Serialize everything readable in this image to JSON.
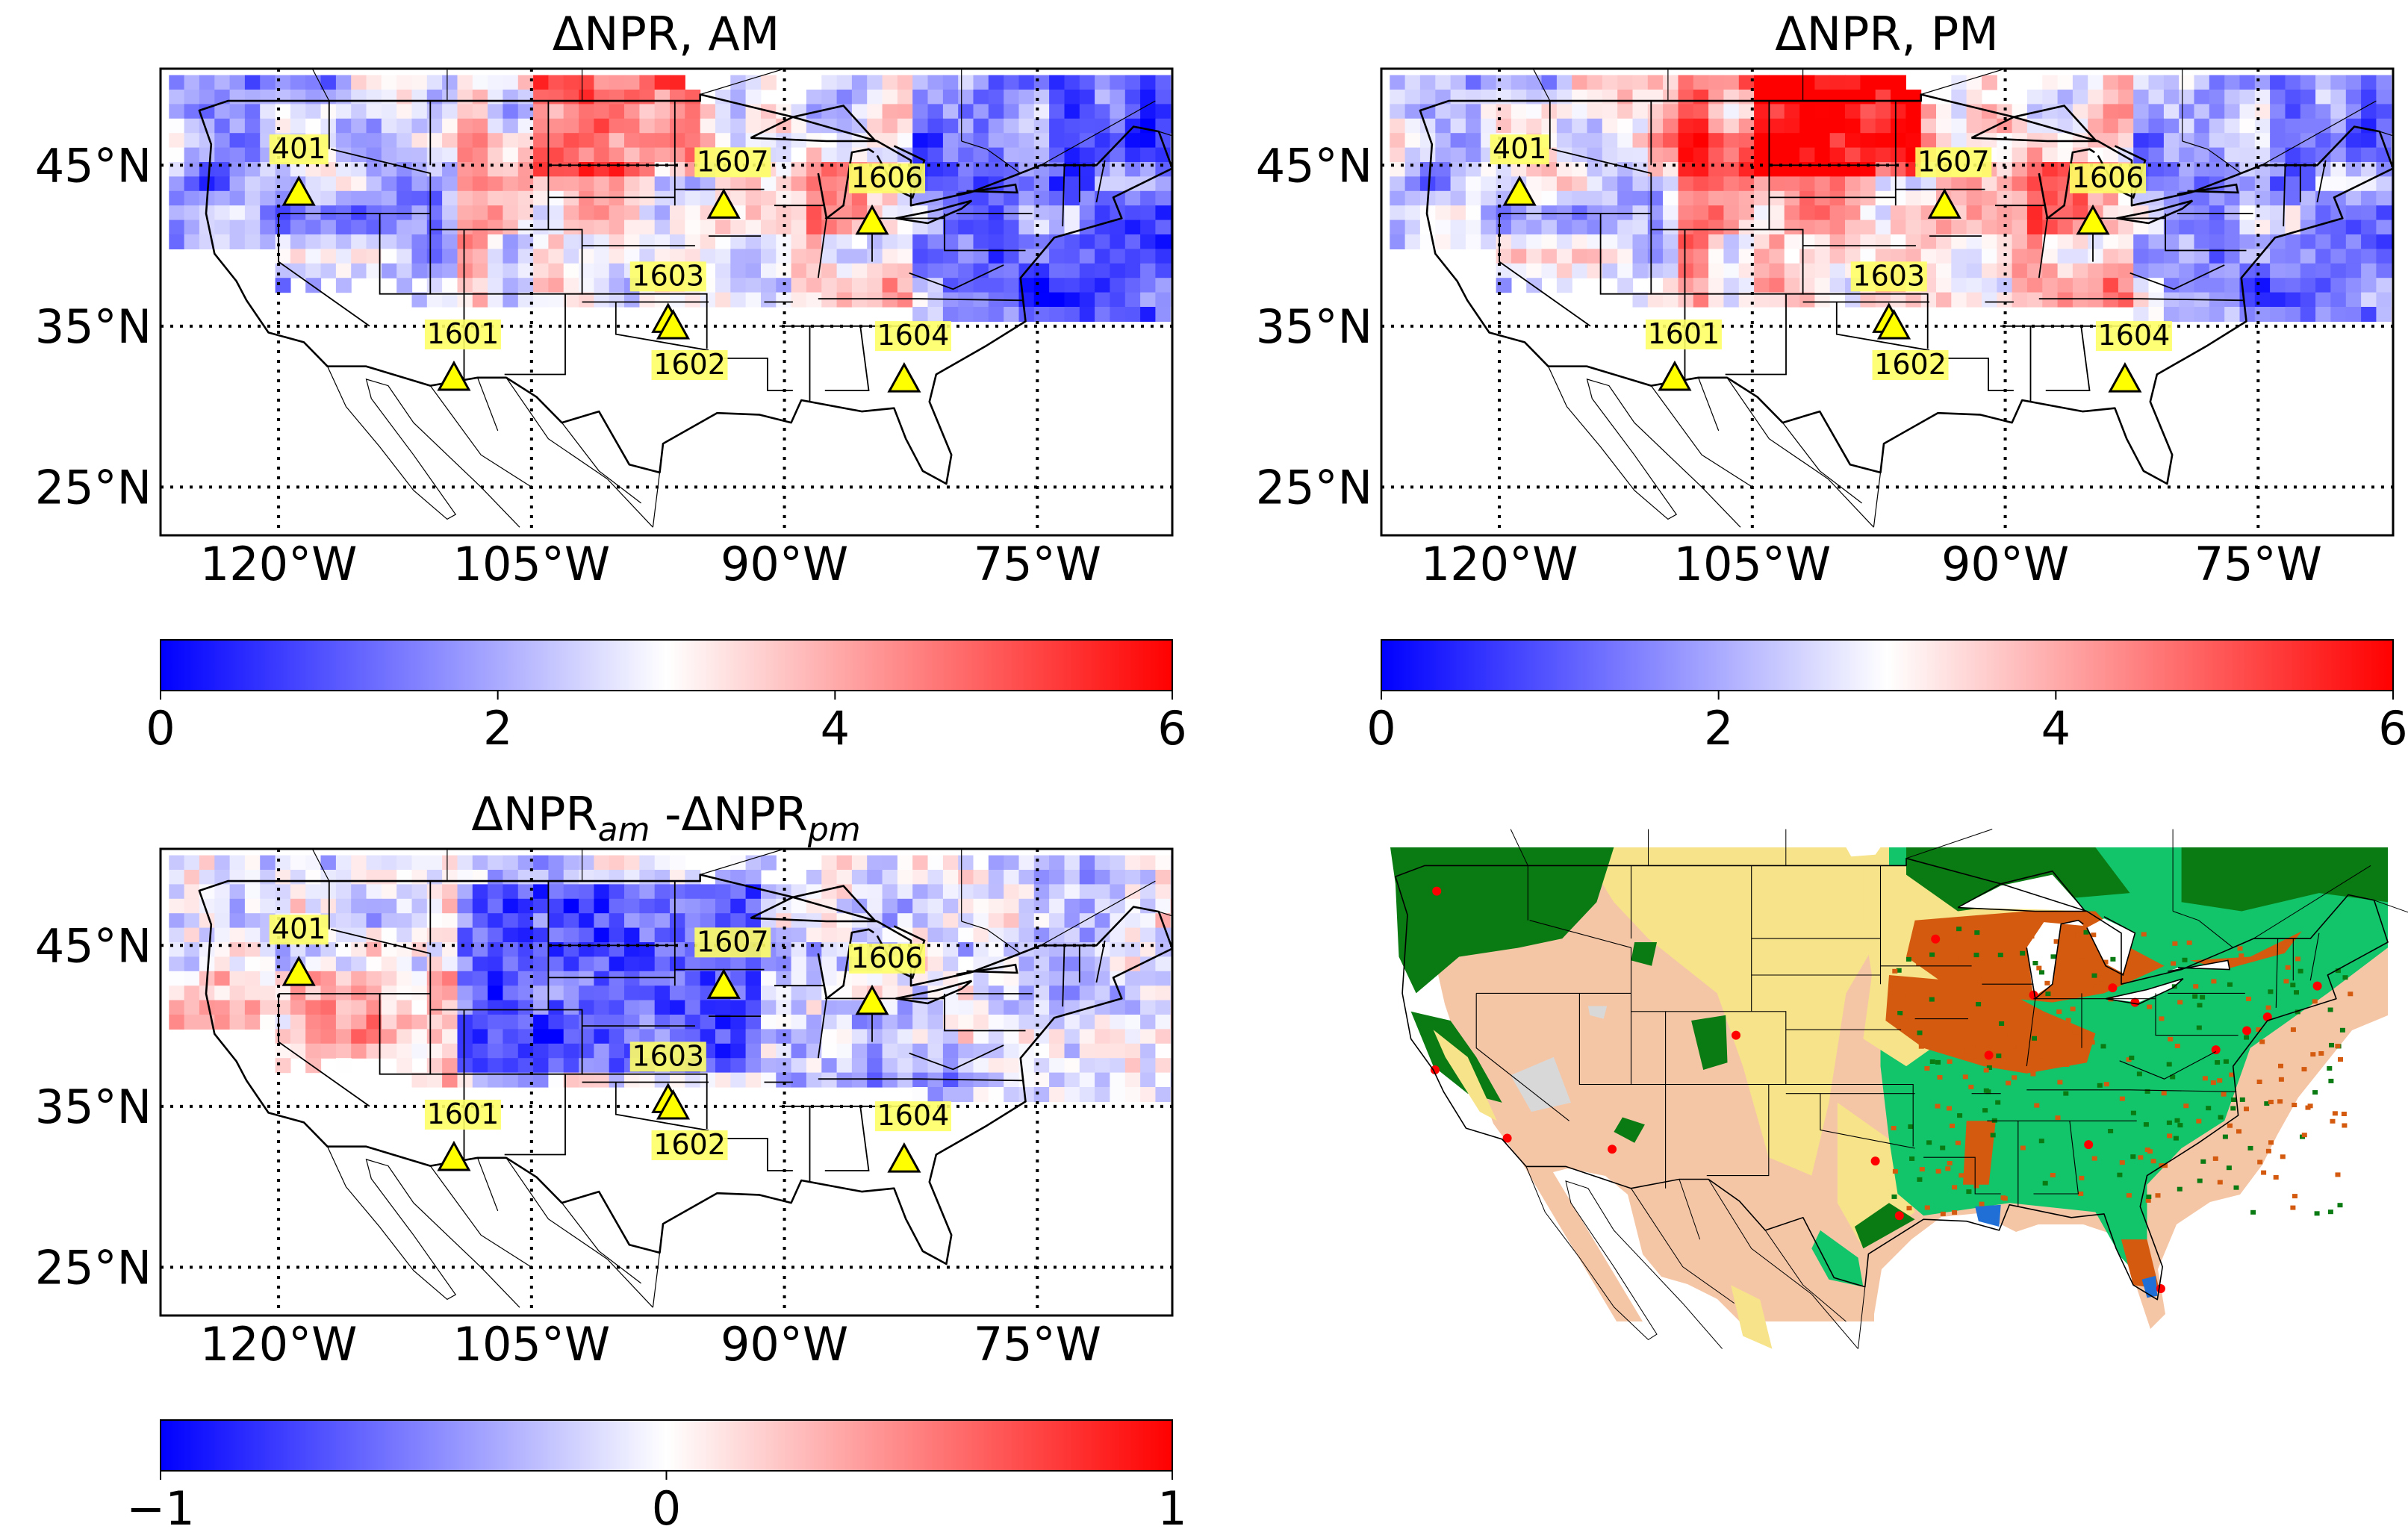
{
  "figure": {
    "panels": [
      {
        "id": "am",
        "title": "ΔNPR, AM",
        "colorbar": {
          "ticks": [
            "0",
            "2",
            "4",
            "6"
          ],
          "colors": [
            "#0000ff",
            "#ffffff",
            "#ff0000"
          ]
        }
      },
      {
        "id": "pm",
        "title": "ΔNPR, PM",
        "colorbar": {
          "ticks": [
            "0",
            "2",
            "4",
            "6"
          ],
          "colors": [
            "#0000ff",
            "#ffffff",
            "#ff0000"
          ]
        }
      },
      {
        "id": "diff",
        "title_main": "ΔNPR",
        "title_sub1": "am",
        "title_mid": " -ΔNPR",
        "title_sub2": "pm",
        "colorbar": {
          "ticks": [
            "−1",
            "0",
            "1"
          ],
          "colors": [
            "#0000ff",
            "#ffffff",
            "#ff0000"
          ]
        }
      }
    ],
    "lat_labels": [
      "45°N",
      "35°N",
      "25°N"
    ],
    "lon_labels": [
      "120°W",
      "105°W",
      "90°W",
      "75°W"
    ],
    "sites": [
      "401",
      "1607",
      "1606",
      "1603",
      "1601",
      "1602",
      "1604"
    ],
    "landcover_panel": {
      "name": "land cover map",
      "colors": {
        "forest": "#0a7a12",
        "cropland_mosaic": "#12c46a",
        "shrubland": "#f5c6a6",
        "grassland": "#f7e38a",
        "cropland": "#d35a0e",
        "urban": "#ff0000",
        "water": "#1f6fd6",
        "barren": "#d8d8d8"
      }
    }
  }
}
